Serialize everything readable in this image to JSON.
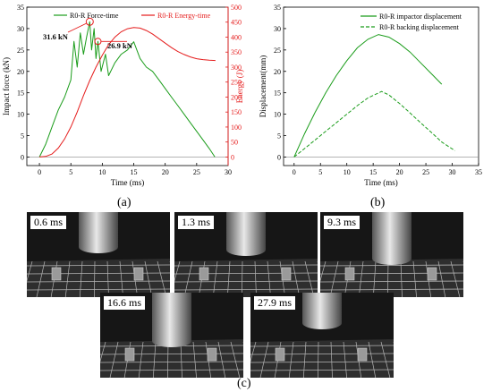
{
  "panel_a": {
    "label": "(a)",
    "xlabel": "Time (ms)",
    "ylabel_left": "Impact force (kN)",
    "ylabel_right": "Energy (J)",
    "legend": [
      "R0-R Force-time",
      "R0-R Energy-time"
    ],
    "annotations": [
      "31.6 kN",
      "26.9 kN"
    ],
    "x_ticks": [
      "0",
      "5",
      "10",
      "15",
      "20",
      "25",
      "30"
    ],
    "y_left_ticks": [
      "0",
      "5",
      "10",
      "15",
      "20",
      "25",
      "30",
      "35"
    ],
    "y_right_ticks": [
      "0",
      "50",
      "100",
      "150",
      "200",
      "250",
      "300",
      "350",
      "400",
      "450",
      "500"
    ]
  },
  "panel_b": {
    "label": "(b)",
    "xlabel": "Time (ms)",
    "ylabel": "Displacement(mm)",
    "legend": [
      "R0-R impactor displacement",
      "R0-R backing displacement"
    ],
    "x_ticks": [
      "0",
      "5",
      "10",
      "15",
      "20",
      "25",
      "30",
      "35"
    ],
    "y_ticks": [
      "0",
      "5",
      "10",
      "15",
      "20",
      "25",
      "30",
      "35"
    ]
  },
  "panel_c": {
    "label": "(c)",
    "frames": [
      "0.6 ms",
      "1.3 ms",
      "9.3 ms",
      "16.6 ms",
      "27.9 ms"
    ]
  },
  "colors": {
    "force": "#1a9c1a",
    "energy": "#e51c1c",
    "displacement": "#1a9c1a",
    "annotation_circle": "#e51c1c"
  },
  "chart_data": [
    {
      "type": "line",
      "panel": "(a)",
      "xlabel": "Time (ms)",
      "ylabel": "Impact force (kN)",
      "y2label": "Energy (J)",
      "xlim": [
        -2,
        30
      ],
      "ylim": [
        -2,
        35
      ],
      "y2lim": [
        -28.6,
        500
      ],
      "grid": false,
      "legend_position": "top",
      "series": [
        {
          "name": "R0-R Force-time",
          "axis": "left",
          "x": [
            0,
            1,
            2,
            3,
            4,
            5,
            5.5,
            6,
            6.5,
            7,
            7.5,
            8,
            8.3,
            8.7,
            9,
            9.3,
            9.8,
            10.5,
            11,
            12,
            13,
            14,
            15,
            16,
            17,
            18,
            19,
            20,
            21,
            22,
            23,
            24,
            25,
            26,
            27,
            27.9
          ],
          "y": [
            0,
            3,
            7,
            11,
            14,
            18,
            27,
            21,
            29,
            24,
            28,
            31.6,
            25,
            30,
            23,
            27,
            20,
            24,
            19,
            22,
            24,
            25,
            26.9,
            23,
            21,
            20,
            18,
            16,
            14,
            12,
            10,
            8,
            6,
            4,
            2,
            0
          ]
        },
        {
          "name": "R0-R Energy-time",
          "axis": "right",
          "x": [
            0,
            1,
            2,
            3,
            4,
            5,
            6,
            7,
            8,
            9,
            10,
            11,
            12,
            13,
            14,
            15,
            16,
            17,
            18,
            19,
            20,
            21,
            22,
            23,
            24,
            25,
            26,
            27,
            28
          ],
          "y": [
            0,
            2,
            10,
            30,
            60,
            100,
            150,
            205,
            255,
            300,
            340,
            375,
            400,
            418,
            428,
            432,
            430,
            422,
            410,
            395,
            380,
            365,
            352,
            342,
            334,
            328,
            325,
            323,
            322
          ]
        }
      ]
    },
    {
      "type": "line",
      "panel": "(b)",
      "xlabel": "Time (ms)",
      "ylabel": "Displacement(mm)",
      "xlim": [
        -2,
        35
      ],
      "ylim": [
        -2,
        35
      ],
      "grid": false,
      "legend_position": "top-right",
      "series": [
        {
          "name": "R0-R impactor displacement",
          "style": "solid",
          "x": [
            0,
            2,
            4,
            6,
            8,
            10,
            12,
            14,
            16,
            18,
            20,
            22,
            24,
            26,
            28
          ],
          "y": [
            0,
            5.5,
            10.5,
            15,
            19,
            22.5,
            25.5,
            27.5,
            28.6,
            28,
            26.5,
            24.5,
            22,
            19.5,
            17
          ]
        },
        {
          "name": "R0-R backing displacement",
          "style": "dashed",
          "x": [
            0,
            2,
            4,
            6,
            8,
            10,
            12,
            14,
            16.6,
            18,
            20,
            22,
            24,
            26,
            28,
            30.5
          ],
          "y": [
            0,
            2,
            4,
            6,
            8,
            10,
            12,
            13.8,
            15.3,
            14.5,
            12.5,
            10.3,
            8,
            5.8,
            3.5,
            1.5
          ]
        }
      ]
    }
  ]
}
